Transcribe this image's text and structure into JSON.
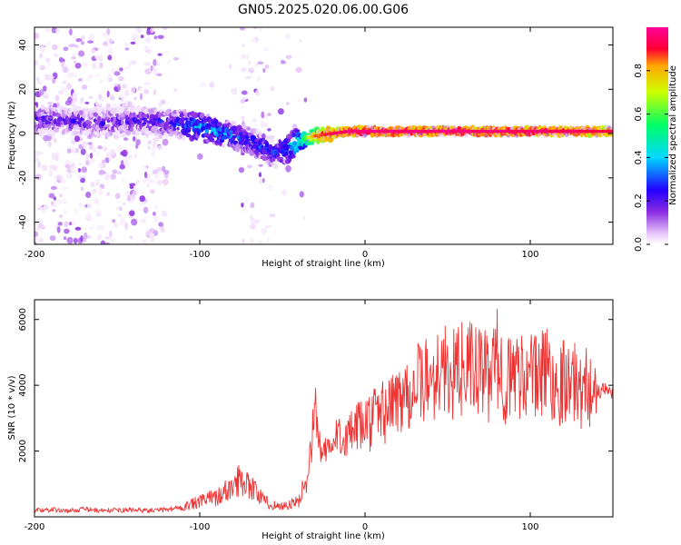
{
  "title": "GN05.2025.020.06.00.G06",
  "colors": {
    "snr_line": "#ee3333",
    "axis": "#000000",
    "background": "#ffffff",
    "colormap": [
      "#ffffff",
      "#e7c6fa",
      "#8a2be2",
      "#2200ff",
      "#00d8ff",
      "#00ff66",
      "#ccff00",
      "#ffaa00",
      "#ff0033",
      "#ff0099"
    ]
  },
  "chart_data": [
    {
      "type": "heatmap",
      "title": "GN05.2025.020.06.00.G06",
      "xlabel": "Height of straight line (km)",
      "ylabel": "Frequency (Hz)",
      "xlim": [
        -200,
        150
      ],
      "ylim": [
        -50,
        48
      ],
      "x_ticks": [
        -200,
        -100,
        0,
        100
      ],
      "x_tick_labels": [
        "-200",
        "-100",
        "0",
        "100"
      ],
      "y_ticks": [
        -40,
        -20,
        0,
        20,
        40
      ],
      "y_tick_labels": [
        "-40",
        "-20",
        "0",
        "20",
        "40"
      ],
      "colorbar": {
        "label": "Normalized spectral amplitude",
        "range": [
          0,
          1
        ],
        "ticks": [
          0.0,
          0.2,
          0.4,
          0.6,
          0.8
        ],
        "tick_labels": [
          "0.0",
          "0.2",
          "0.4",
          "0.6",
          "0.8"
        ]
      },
      "ridge": {
        "x": [
          -200,
          -180,
          -160,
          -140,
          -120,
          -110,
          -100,
          -90,
          -80,
          -70,
          -60,
          -55,
          -50,
          -45,
          -40,
          -35,
          -30,
          -20,
          -10,
          0,
          20,
          50,
          100,
          150
        ],
        "freq": [
          6,
          6,
          5,
          6,
          5,
          4,
          3,
          1,
          -1,
          -3,
          -7,
          -9,
          -8,
          -6,
          -4,
          -2,
          -1,
          0,
          1,
          1,
          1,
          1,
          1,
          1
        ],
        "amplitude": [
          0.28,
          0.28,
          0.26,
          0.27,
          0.3,
          0.35,
          0.42,
          0.4,
          0.38,
          0.35,
          0.34,
          0.36,
          0.38,
          0.45,
          0.55,
          0.65,
          0.8,
          0.9,
          0.95,
          0.97,
          0.97,
          0.96,
          0.95,
          0.9
        ]
      }
    },
    {
      "type": "line",
      "xlabel": "Height of straight line (km)",
      "ylabel": "SNR (10 * v/v)",
      "xlim": [
        -200,
        150
      ],
      "ylim": [
        0,
        6600
      ],
      "x_ticks": [
        -200,
        -100,
        0,
        100
      ],
      "x_tick_labels": [
        "-200",
        "-100",
        "0",
        "100"
      ],
      "y_ticks": [
        2000,
        4000,
        6000
      ],
      "y_tick_labels": [
        "2000",
        "4000",
        "6000"
      ],
      "series": [
        {
          "x": [
            -200,
            -190,
            -180,
            -170,
            -160,
            -150,
            -140,
            -130,
            -120,
            -110,
            -100,
            -95,
            -90,
            -85,
            -80,
            -75,
            -70,
            -65,
            -60,
            -55,
            -50,
            -45,
            -40,
            -36,
            -34,
            -32,
            -30,
            -28,
            -25,
            -20,
            -15,
            -10,
            -5,
            0,
            5,
            10,
            15,
            20,
            25,
            30,
            35,
            40,
            45,
            50,
            55,
            60,
            65,
            70,
            75,
            80,
            85,
            90,
            95,
            100,
            105,
            110,
            115,
            120,
            125,
            130,
            135,
            140,
            145,
            150
          ],
          "y": [
            200,
            220,
            180,
            230,
            190,
            200,
            210,
            190,
            220,
            300,
            450,
            550,
            600,
            750,
            900,
            1200,
            1000,
            700,
            450,
            350,
            320,
            380,
            450,
            1100,
            1700,
            2400,
            3500,
            2200,
            1900,
            2100,
            2600,
            2400,
            2700,
            2800,
            3000,
            3200,
            3300,
            3600,
            3800,
            4000,
            4100,
            4200,
            4500,
            4400,
            4300,
            4600,
            4500,
            4400,
            4200,
            4800,
            4100,
            4300,
            4400,
            4300,
            4200,
            4600,
            3900,
            4200,
            4100,
            3900,
            4000,
            3800,
            3850,
            3800
          ]
        }
      ]
    }
  ]
}
